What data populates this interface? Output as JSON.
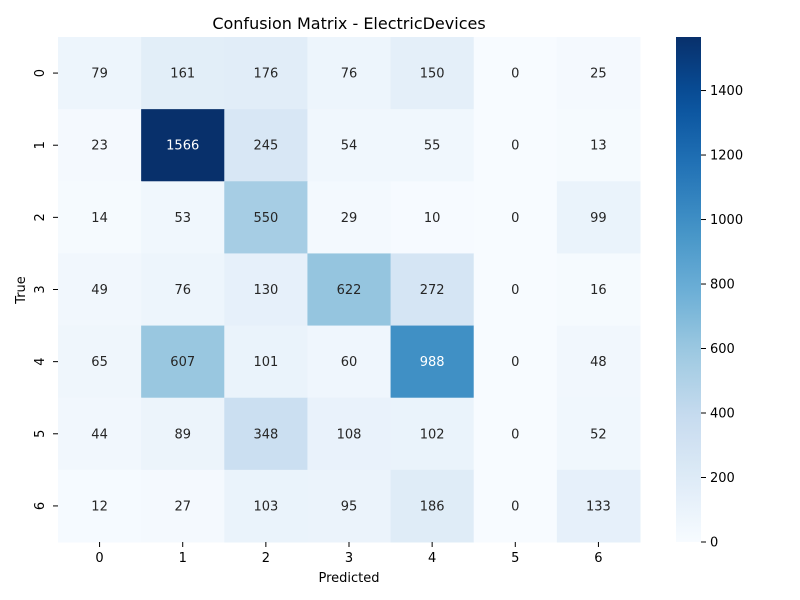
{
  "chart_data": {
    "type": "heatmap",
    "title": "Confusion Matrix - ElectricDevices",
    "xlabel": "Predicted",
    "ylabel": "True",
    "x_categories": [
      "0",
      "1",
      "2",
      "3",
      "4",
      "5",
      "6"
    ],
    "y_categories": [
      "0",
      "1",
      "2",
      "3",
      "4",
      "5",
      "6"
    ],
    "values": [
      [
        79,
        161,
        176,
        76,
        150,
        0,
        25
      ],
      [
        23,
        1566,
        245,
        54,
        55,
        0,
        13
      ],
      [
        14,
        53,
        550,
        29,
        10,
        0,
        99
      ],
      [
        49,
        76,
        130,
        622,
        272,
        0,
        16
      ],
      [
        65,
        607,
        101,
        60,
        988,
        0,
        48
      ],
      [
        44,
        89,
        348,
        108,
        102,
        0,
        52
      ],
      [
        12,
        27,
        103,
        95,
        186,
        0,
        133
      ]
    ],
    "colorscale": "Blues",
    "vmin": 0,
    "vmax": 1566,
    "colorbar_ticks": [
      0,
      200,
      400,
      600,
      800,
      1000,
      1200,
      1400
    ],
    "annotations": true
  }
}
